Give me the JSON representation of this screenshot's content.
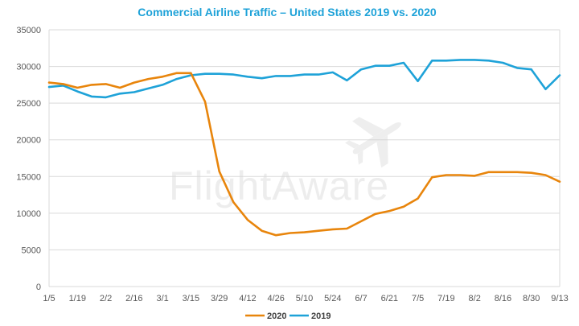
{
  "chart_data": {
    "type": "line",
    "title": "Commercial Airline Traffic – United States 2019 vs. 2020",
    "watermark": "FlightAware",
    "xlabel": "",
    "ylabel": "",
    "ylim": [
      0,
      35000
    ],
    "yticks": [
      0,
      5000,
      10000,
      15000,
      20000,
      25000,
      30000,
      35000
    ],
    "grid": "horizontal",
    "legend_position": "bottom-center",
    "x_tick_labels": [
      "1/5",
      "1/19",
      "2/2",
      "2/16",
      "3/1",
      "3/15",
      "3/29",
      "4/12",
      "4/26",
      "5/10",
      "5/24",
      "6/7",
      "6/21",
      "7/5",
      "7/19",
      "8/2",
      "8/16",
      "8/30",
      "9/13"
    ],
    "x_count": 37,
    "series": [
      {
        "name": "2020",
        "color": "#E8850C",
        "values": [
          27800,
          27600,
          27100,
          27500,
          27600,
          27100,
          27800,
          28300,
          28600,
          29100,
          29100,
          25200,
          15700,
          11500,
          9100,
          7600,
          7000,
          7300,
          7400,
          7600,
          7800,
          7900,
          8900,
          9900,
          10300,
          10900,
          12000,
          14900,
          15200,
          15200,
          15100,
          15600,
          15600,
          15600,
          15500,
          15200,
          14300
        ]
      },
      {
        "name": "2019",
        "color": "#1EA2D8",
        "values": [
          27200,
          27400,
          26600,
          25900,
          25800,
          26300,
          26500,
          27000,
          27500,
          28300,
          28800,
          29000,
          29000,
          28900,
          28600,
          28400,
          28700,
          28700,
          28900,
          28900,
          29200,
          28100,
          29600,
          30100,
          30100,
          30500,
          28000,
          30800,
          30800,
          30900,
          30900,
          30800,
          30500,
          29800,
          29600,
          26900,
          28800
        ]
      }
    ]
  }
}
